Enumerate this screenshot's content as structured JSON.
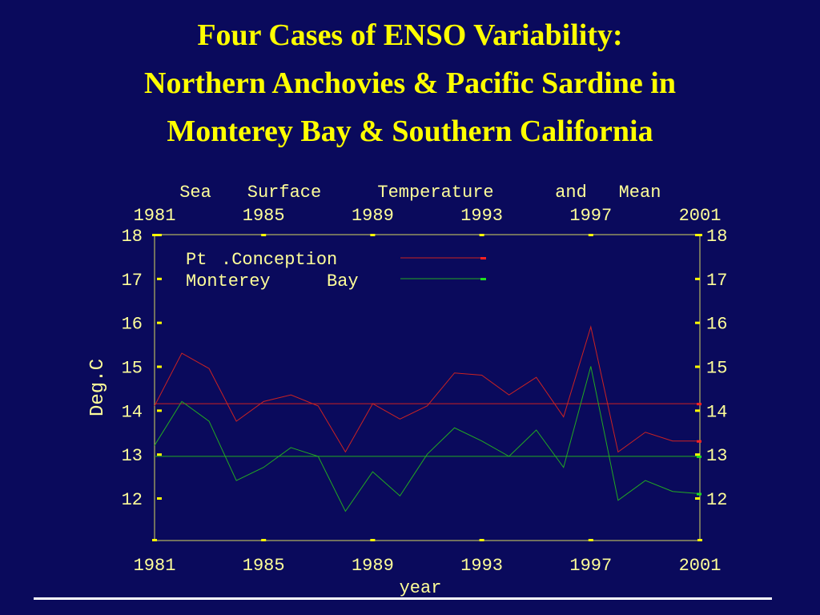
{
  "slide": {
    "title_lines": [
      "Four Cases of ENSO Variability:",
      "Northern Anchovies & Pacific Sardine in",
      "Monterey Bay & Southern California"
    ]
  },
  "colors": {
    "background": "#0a0a5c",
    "title": "#ffff00",
    "axis_text": "#ffff99",
    "axis_box": "#d8d860",
    "pt_conception": "#cc2222",
    "monterey_bay": "#22aa22",
    "tick_red": "#ff2020",
    "tick_green": "#20e020"
  },
  "chart_data": {
    "type": "line",
    "title_words": [
      "Sea",
      "Surface",
      "Temperature",
      "and",
      "Mean"
    ],
    "xlabel": "year",
    "ylabel": "Deg.C",
    "xlim": [
      1981,
      2001
    ],
    "ylim": [
      11,
      18
    ],
    "x_ticks": [
      "1981",
      "1985",
      "1989",
      "1993",
      "1997",
      "2001"
    ],
    "y_ticks": [
      "12",
      "13",
      "14",
      "15",
      "16",
      "17",
      "18"
    ],
    "x": [
      1981,
      1982,
      1983,
      1984,
      1985,
      1986,
      1987,
      1988,
      1989,
      1990,
      1991,
      1992,
      1993,
      1994,
      1995,
      1996,
      1997,
      1998,
      1999,
      2000,
      2001
    ],
    "series": [
      {
        "name": "Pt.Conception",
        "label_parts": [
          "Pt",
          ".Conception"
        ],
        "values": [
          14.1,
          15.3,
          14.95,
          13.75,
          14.2,
          14.35,
          14.1,
          13.05,
          14.15,
          13.8,
          14.1,
          14.85,
          14.8,
          14.35,
          14.75,
          13.85,
          15.9,
          13.05,
          13.5,
          13.3,
          13.3
        ],
        "mean": 14.15
      },
      {
        "name": "Monterey Bay",
        "label_parts": [
          "Monterey",
          "Bay"
        ],
        "values": [
          13.2,
          14.2,
          13.75,
          12.4,
          12.7,
          13.15,
          12.95,
          11.7,
          12.6,
          12.05,
          13.0,
          13.6,
          13.3,
          12.95,
          13.55,
          12.7,
          15.0,
          11.95,
          12.4,
          12.15,
          12.1
        ],
        "mean": 12.95
      }
    ],
    "legend_position": "top-left",
    "grid": false
  }
}
